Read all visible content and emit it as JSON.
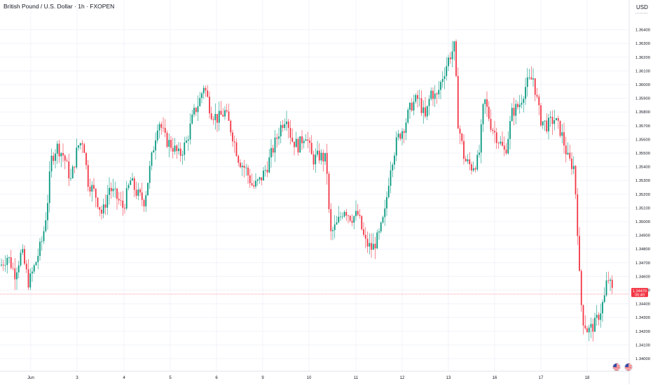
{
  "header": {
    "title": "British Pound / U.S. Dollar · 1h · FXOPEN",
    "currency": "USD"
  },
  "price_tag": {
    "price": "1.34470",
    "countdown": "06:49",
    "color": "#f23645"
  },
  "colors": {
    "up": "#089981",
    "down": "#f23645",
    "grid": "#f0f3fa",
    "axis_text": "#131722",
    "price_line": "#f23645"
  },
  "event_icons": [
    "us-flag-icon",
    "us-flag-icon"
  ],
  "chart_data": {
    "type": "candlestick",
    "symbol": "GBPUSD",
    "interval": "1h",
    "ylim": [
      1.3395,
      1.365
    ],
    "y_ticks": [
      "1.36400",
      "1.36300",
      "1.36200",
      "1.36100",
      "1.36000",
      "1.35900",
      "1.35800",
      "1.35700",
      "1.35600",
      "1.35500",
      "1.35400",
      "1.35300",
      "1.35200",
      "1.35100",
      "1.35000",
      "1.34900",
      "1.34800",
      "1.34700",
      "1.34600",
      "1.34500",
      "1.34400",
      "1.34300",
      "1.34200",
      "1.34100",
      "1.34000"
    ],
    "x_labels": [
      "Jun",
      "3",
      "4",
      "5",
      "6",
      "9",
      "10",
      "11",
      "12",
      "13",
      "16",
      "17",
      "18"
    ],
    "current_price": 1.3447,
    "close_path": [
      [
        0,
        1.3468
      ],
      [
        10,
        1.3475
      ],
      [
        20,
        1.3462
      ],
      [
        30,
        1.3478
      ],
      [
        40,
        1.3455
      ],
      [
        50,
        1.347
      ],
      [
        60,
        1.3488
      ],
      [
        66,
        1.351
      ],
      [
        72,
        1.3545
      ],
      [
        80,
        1.3555
      ],
      [
        90,
        1.3548
      ],
      [
        100,
        1.353
      ],
      [
        110,
        1.3555
      ],
      [
        118,
        1.356
      ],
      [
        124,
        1.353
      ],
      [
        135,
        1.352
      ],
      [
        145,
        1.3505
      ],
      [
        155,
        1.3525
      ],
      [
        165,
        1.3518
      ],
      [
        175,
        1.351
      ],
      [
        185,
        1.353
      ],
      [
        195,
        1.352
      ],
      [
        205,
        1.3515
      ],
      [
        215,
        1.3545
      ],
      [
        225,
        1.3575
      ],
      [
        235,
        1.356
      ],
      [
        245,
        1.3555
      ],
      [
        255,
        1.3548
      ],
      [
        265,
        1.3558
      ],
      [
        275,
        1.3578
      ],
      [
        285,
        1.359
      ],
      [
        290,
        1.36
      ],
      [
        300,
        1.358
      ],
      [
        310,
        1.3575
      ],
      [
        320,
        1.358
      ],
      [
        330,
        1.3565
      ],
      [
        340,
        1.3545
      ],
      [
        350,
        1.3538
      ],
      [
        360,
        1.3525
      ],
      [
        370,
        1.353
      ],
      [
        380,
        1.354
      ],
      [
        390,
        1.3555
      ],
      [
        400,
        1.357
      ],
      [
        408,
        1.3578
      ],
      [
        415,
        1.356
      ],
      [
        425,
        1.3555
      ],
      [
        435,
        1.3565
      ],
      [
        445,
        1.3545
      ],
      [
        455,
        1.3548
      ],
      [
        465,
        1.3545
      ],
      [
        470,
        1.349
      ],
      [
        480,
        1.3498
      ],
      [
        490,
        1.351
      ],
      [
        500,
        1.3503
      ],
      [
        510,
        1.3505
      ],
      [
        520,
        1.3485
      ],
      [
        530,
        1.348
      ],
      [
        540,
        1.349
      ],
      [
        548,
        1.3505
      ],
      [
        556,
        1.354
      ],
      [
        566,
        1.356
      ],
      [
        576,
        1.357
      ],
      [
        586,
        1.3585
      ],
      [
        596,
        1.359
      ],
      [
        606,
        1.3575
      ],
      [
        614,
        1.3595
      ],
      [
        622,
        1.359
      ],
      [
        630,
        1.3605
      ],
      [
        640,
        1.362
      ],
      [
        648,
        1.3628
      ],
      [
        652,
        1.3575
      ],
      [
        662,
        1.3545
      ],
      [
        672,
        1.354
      ],
      [
        682,
        1.3545
      ],
      [
        690,
        1.359
      ],
      [
        700,
        1.357
      ],
      [
        710,
        1.356
      ],
      [
        720,
        1.355
      ],
      [
        730,
        1.358
      ],
      [
        740,
        1.3585
      ],
      [
        750,
        1.36
      ],
      [
        760,
        1.3605
      ],
      [
        770,
        1.3575
      ],
      [
        780,
        1.357
      ],
      [
        790,
        1.3575
      ],
      [
        800,
        1.3565
      ],
      [
        810,
        1.3545
      ],
      [
        818,
        1.354
      ],
      [
        822,
        1.351
      ],
      [
        826,
        1.346
      ],
      [
        830,
        1.343
      ],
      [
        838,
        1.342
      ],
      [
        848,
        1.3425
      ],
      [
        856,
        1.3435
      ],
      [
        862,
        1.3445
      ],
      [
        866,
        1.346
      ],
      [
        874,
        1.3447
      ]
    ]
  }
}
